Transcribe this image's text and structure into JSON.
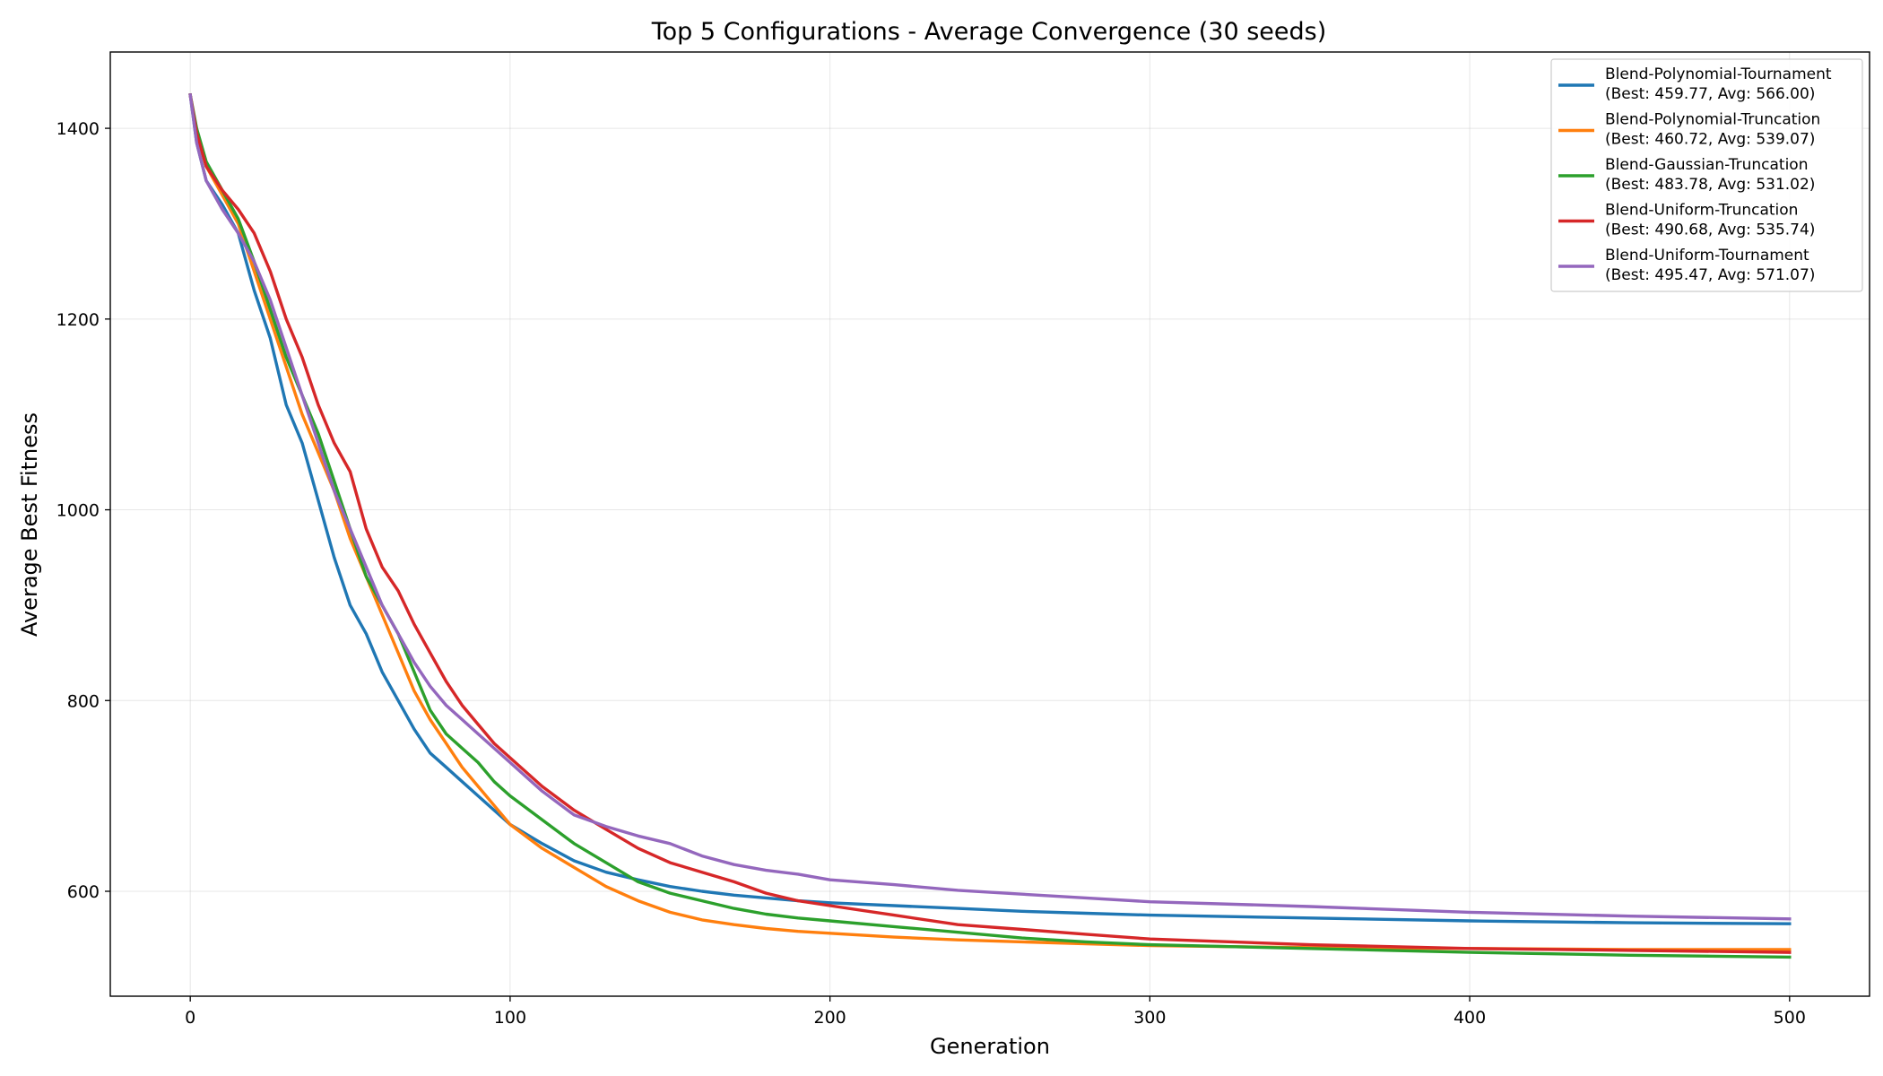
{
  "chart_data": {
    "type": "line",
    "title": "Top 5 Configurations - Average Convergence (30 seeds)",
    "xlabel": "Generation",
    "ylabel": "Average Best Fitness",
    "xlim": [
      -25,
      525
    ],
    "ylim": [
      490,
      1480
    ],
    "xticks": [
      0,
      100,
      200,
      300,
      400,
      500
    ],
    "yticks": [
      600,
      800,
      1000,
      1200,
      1400
    ],
    "grid": true,
    "legend_position": "top-right",
    "x": [
      0,
      2,
      5,
      10,
      15,
      20,
      25,
      30,
      35,
      40,
      45,
      50,
      55,
      60,
      65,
      70,
      75,
      80,
      85,
      90,
      95,
      100,
      110,
      120,
      130,
      140,
      150,
      160,
      170,
      180,
      190,
      200,
      220,
      240,
      260,
      280,
      300,
      350,
      400,
      450,
      500
    ],
    "series": [
      {
        "name": "Blend-Polynomial-Tournament",
        "legend_detail": "(Best: 459.77, Avg: 566.00)",
        "color": "#1f77b4",
        "values": [
          1435,
          1385,
          1345,
          1320,
          1290,
          1230,
          1180,
          1110,
          1070,
          1010,
          950,
          900,
          870,
          830,
          800,
          770,
          745,
          730,
          715,
          700,
          685,
          670,
          650,
          632,
          620,
          612,
          605,
          600,
          596,
          593,
          590,
          588,
          585,
          582,
          579,
          577,
          575,
          572,
          569,
          567,
          566
        ]
      },
      {
        "name": "Blend-Polynomial-Truncation",
        "legend_detail": "(Best: 460.72, Avg: 539.07)",
        "color": "#ff7f0e",
        "values": [
          1435,
          1395,
          1360,
          1330,
          1300,
          1250,
          1200,
          1150,
          1100,
          1060,
          1020,
          970,
          930,
          890,
          850,
          810,
          780,
          755,
          730,
          710,
          690,
          670,
          645,
          625,
          605,
          590,
          578,
          570,
          565,
          561,
          558,
          556,
          552,
          549,
          547,
          545,
          543,
          541,
          540,
          539,
          539
        ]
      },
      {
        "name": "Blend-Gaussian-Truncation",
        "legend_detail": "(Best: 483.78, Avg: 531.02)",
        "color": "#2ca02c",
        "values": [
          1435,
          1400,
          1365,
          1335,
          1305,
          1260,
          1210,
          1160,
          1120,
          1080,
          1030,
          980,
          930,
          900,
          870,
          830,
          790,
          765,
          750,
          735,
          715,
          700,
          675,
          650,
          630,
          610,
          598,
          590,
          582,
          576,
          572,
          569,
          563,
          557,
          551,
          547,
          544,
          540,
          536,
          533,
          531
        ]
      },
      {
        "name": "Blend-Uniform-Truncation",
        "legend_detail": "(Best: 490.68, Avg: 535.74)",
        "color": "#d62728",
        "values": [
          1435,
          1395,
          1360,
          1335,
          1315,
          1290,
          1250,
          1200,
          1160,
          1110,
          1070,
          1040,
          980,
          940,
          915,
          880,
          850,
          820,
          795,
          775,
          755,
          740,
          710,
          685,
          665,
          645,
          630,
          620,
          610,
          598,
          590,
          585,
          575,
          565,
          560,
          555,
          550,
          544,
          540,
          538,
          536
        ]
      },
      {
        "name": "Blend-Uniform-Tournament",
        "legend_detail": "(Best: 495.47, Avg: 571.07)",
        "color": "#9467bd",
        "values": [
          1435,
          1385,
          1345,
          1315,
          1290,
          1260,
          1220,
          1170,
          1120,
          1070,
          1020,
          980,
          940,
          900,
          870,
          840,
          815,
          795,
          780,
          765,
          750,
          735,
          705,
          680,
          668,
          658,
          650,
          637,
          628,
          622,
          618,
          612,
          607,
          601,
          597,
          593,
          589,
          584,
          578,
          574,
          571
        ]
      }
    ]
  }
}
